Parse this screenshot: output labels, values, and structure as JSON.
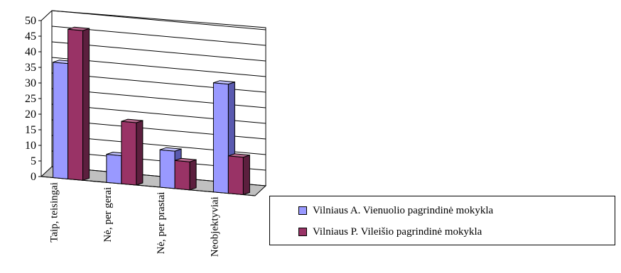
{
  "chart_data": {
    "type": "bar",
    "categories": [
      "Taip, teisingai",
      "Nė, per gerai",
      "Nė, per prastai",
      "Neobjektyviai"
    ],
    "series": [
      {
        "name": "Vilniaus A. Vienuolio pagrindinė mokykla",
        "values": [
          37,
          9,
          12,
          35
        ],
        "color": "#9999ff",
        "side_color": "#5a5ab0",
        "top_color": "#c2c2ff"
      },
      {
        "name": "Vilniaus P. Vileišio pagrindinė mokykla",
        "values": [
          48,
          20,
          9,
          12
        ],
        "color": "#993366",
        "side_color": "#5c1f3e",
        "top_color": "#b86a8f"
      }
    ],
    "ylim": [
      0,
      50
    ],
    "yticks": [
      0,
      5,
      10,
      15,
      20,
      25,
      30,
      35,
      40,
      45,
      50
    ],
    "grid": true,
    "legend_position": "right"
  }
}
